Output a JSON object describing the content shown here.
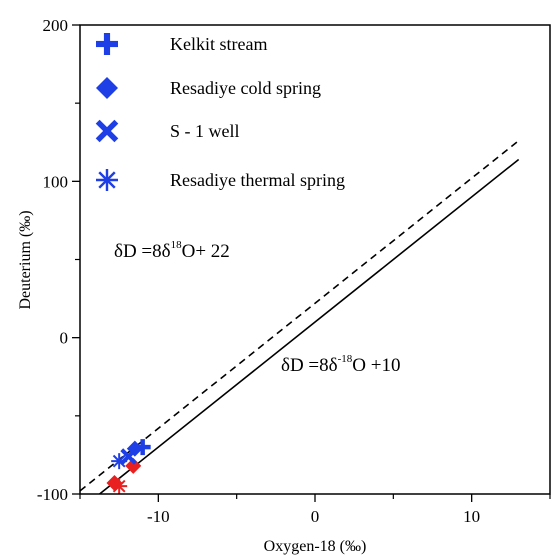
{
  "chart_data": {
    "type": "scatter",
    "title": "",
    "xlabel": "Oxygen-18 (‰)",
    "ylabel": "Deuterium (‰)",
    "xlim": [
      -15,
      15
    ],
    "ylim": [
      -100,
      200
    ],
    "x_ticks": [
      -10,
      0,
      10
    ],
    "y_ticks": [
      -100,
      0,
      100,
      200
    ],
    "grid": false,
    "legend_position": "top-left",
    "series": [
      {
        "name": "Kelkit stream",
        "marker": "plus",
        "color": "#1f3fe6",
        "points": [
          {
            "x": -11.0,
            "y": -70
          }
        ]
      },
      {
        "name": "Resadiye cold spring",
        "marker": "diamond",
        "color": "#1f3fe6",
        "points": [
          {
            "x": -11.5,
            "y": -71
          }
        ]
      },
      {
        "name": "S - 1 well",
        "marker": "x",
        "color": "#1f3fe6",
        "points": [
          {
            "x": -11.9,
            "y": -76
          }
        ]
      },
      {
        "name": "Resadiye thermal spring",
        "marker": "asterisk",
        "color": "#1f3fe6",
        "points": [
          {
            "x": -12.5,
            "y": -79
          }
        ]
      }
    ],
    "extra_markers": [
      {
        "marker": "diamond",
        "color": "#e82020",
        "x": -11.6,
        "y": -82
      },
      {
        "marker": "diamond",
        "color": "#e82020",
        "x": -12.8,
        "y": -93
      },
      {
        "marker": "asterisk",
        "color": "#e82020",
        "x": -12.5,
        "y": -95
      }
    ],
    "reference_lines": [
      {
        "equation": "y = 8x + 22",
        "slope": 8,
        "intercept": 22,
        "style": "dashed",
        "x_range": [
          -15,
          13
        ]
      },
      {
        "equation": "y = 8x + 10",
        "slope": 8,
        "intercept": 10,
        "style": "solid",
        "x_range": [
          -14,
          13
        ]
      }
    ],
    "annotations": {
      "eq1": {
        "a": "δD =8",
        "b": "δ",
        "sup": "18",
        "c": "O+ 22"
      },
      "eq2": {
        "a": "δD =8",
        "b": "δ",
        "sup": "-18",
        "c": "O  +10"
      }
    }
  }
}
